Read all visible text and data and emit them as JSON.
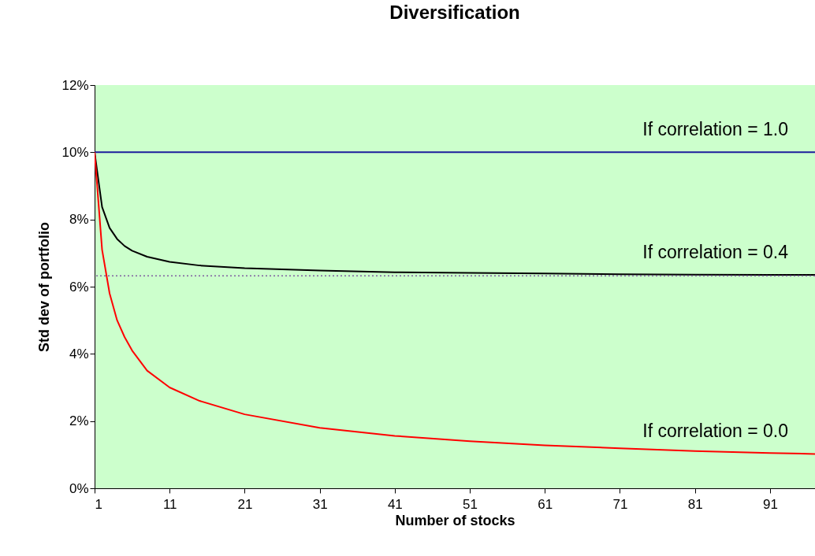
{
  "chart_data": {
    "type": "line",
    "title": "Diversification",
    "xlabel": "Number of stocks",
    "ylabel": "Std dev of portfolio",
    "xlim": [
      1,
      97
    ],
    "xticks": [
      1,
      11,
      21,
      31,
      41,
      51,
      61,
      71,
      81,
      91
    ],
    "ylim": [
      0,
      12
    ],
    "yticks": [
      {
        "value": 0,
        "label": "0%"
      },
      {
        "value": 2,
        "label": "2%"
      },
      {
        "value": 4,
        "label": "4%"
      },
      {
        "value": 6,
        "label": "6%"
      },
      {
        "value": 8,
        "label": "8%"
      },
      {
        "value": 10,
        "label": "10%"
      },
      {
        "value": 12,
        "label": "12%"
      }
    ],
    "x": [
      1,
      2,
      3,
      4,
      5,
      6,
      8,
      11,
      15,
      21,
      31,
      41,
      51,
      61,
      71,
      81,
      91,
      97
    ],
    "series": [
      {
        "name": "If correlation = 1.0",
        "color": "#1c1c9c",
        "values": [
          10,
          10,
          10,
          10,
          10,
          10,
          10,
          10,
          10,
          10,
          10,
          10,
          10,
          10,
          10,
          10,
          10,
          10
        ]
      },
      {
        "name": "If correlation = 0.4",
        "color": "#000000",
        "values": [
          10,
          8.37,
          7.75,
          7.42,
          7.21,
          7.07,
          6.89,
          6.74,
          6.63,
          6.55,
          6.48,
          6.43,
          6.41,
          6.39,
          6.37,
          6.36,
          6.35,
          6.35
        ]
      },
      {
        "name": "If correlation = 0.0",
        "color": "#ff0000",
        "values": [
          10,
          7.1,
          5.8,
          5,
          4.5,
          4.1,
          3.5,
          3,
          2.6,
          2.2,
          1.8,
          1.56,
          1.4,
          1.28,
          1.19,
          1.11,
          1.05,
          1.02
        ]
      }
    ],
    "ref_lines": [
      {
        "axis": "y",
        "value": 6.32,
        "color": "#7f5f9f",
        "line_style": "dotted"
      }
    ],
    "grid": false,
    "legend": false,
    "marker": "none",
    "line_style": "solid"
  }
}
